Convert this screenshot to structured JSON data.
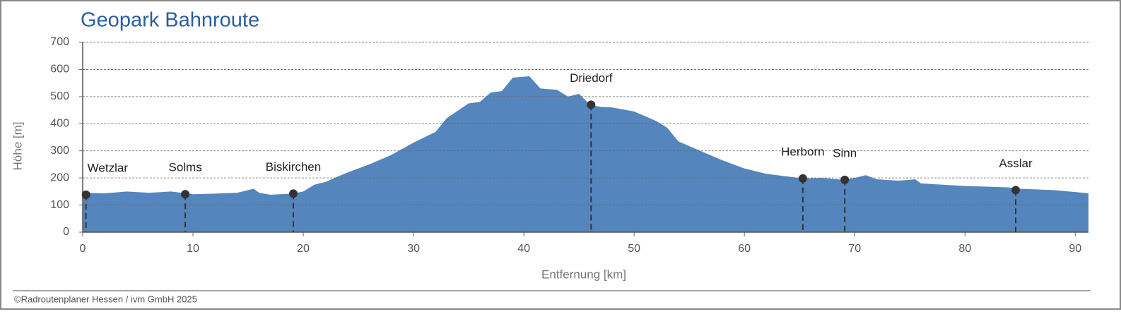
{
  "chart_data": {
    "type": "area",
    "title": "Geopark Bahnroute",
    "x_label": "Entfernung [km]",
    "y_label": "Höhe [m]",
    "footer": "©Radroutenplaner Hessen / ivm GmbH 2025",
    "color": "#5585bd",
    "x": [
      0,
      2,
      4,
      6,
      8,
      10,
      12,
      14,
      15.5,
      16,
      17,
      19,
      20,
      21,
      22,
      24,
      26,
      28,
      30,
      32,
      33,
      35,
      36,
      37,
      38,
      39,
      40.5,
      41.5,
      43,
      44,
      45,
      46,
      47,
      48,
      50,
      52,
      53,
      54,
      56,
      58,
      60,
      62,
      64,
      65.3,
      67,
      69,
      70,
      71,
      72,
      74,
      75.5,
      76,
      78,
      80,
      82,
      84,
      85,
      88,
      90,
      91.2
    ],
    "values": [
      145,
      143,
      150,
      145,
      150,
      140,
      142,
      145,
      160,
      145,
      138,
      142,
      150,
      175,
      185,
      220,
      250,
      285,
      330,
      370,
      420,
      475,
      480,
      515,
      520,
      570,
      575,
      530,
      525,
      500,
      510,
      470,
      462,
      460,
      445,
      410,
      385,
      335,
      300,
      265,
      235,
      215,
      205,
      198,
      200,
      193,
      200,
      210,
      195,
      190,
      195,
      180,
      175,
      170,
      168,
      165,
      160,
      155,
      148,
      143
    ],
    "annotations": [
      {
        "label": "Wetzlar",
        "x": 0.3,
        "y": 138
      },
      {
        "label": "Solms",
        "x": 9.3,
        "y": 140
      },
      {
        "label": "Biskirchen",
        "x": 19.1,
        "y": 142
      },
      {
        "label": "Driedorf",
        "x": 46.1,
        "y": 470
      },
      {
        "label": "Herborn",
        "x": 65.3,
        "y": 198
      },
      {
        "label": "Sinn",
        "x": 69.1,
        "y": 193
      },
      {
        "label": "Asslar",
        "x": 84.6,
        "y": 155
      }
    ],
    "xlim": [
      0,
      91.2
    ],
    "ylim": [
      0,
      700
    ],
    "xticks": [
      0,
      10,
      20,
      30,
      40,
      50,
      60,
      70,
      80,
      90
    ],
    "yticks": [
      0,
      100,
      200,
      300,
      400,
      500,
      600,
      700
    ],
    "grid": true
  }
}
